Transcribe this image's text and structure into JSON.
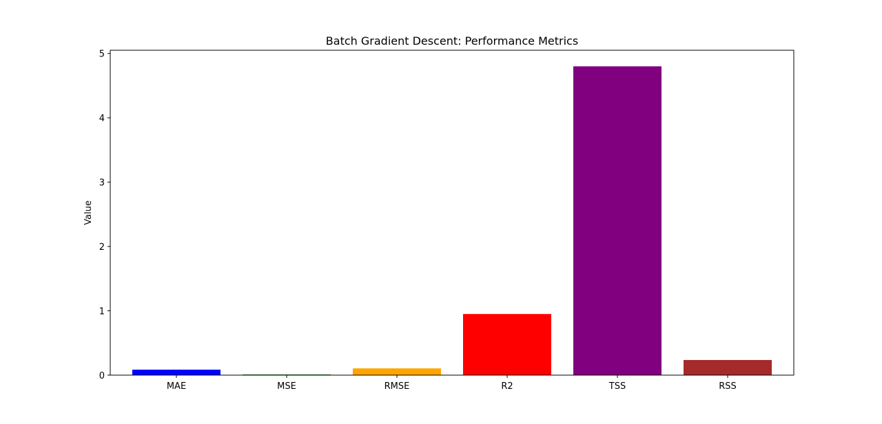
{
  "chart_data": {
    "type": "bar",
    "title": "Batch Gradient Descent: Performance Metrics",
    "xlabel": "",
    "ylabel": "Value",
    "categories": [
      "MAE",
      "MSE",
      "RMSE",
      "R2",
      "TSS",
      "RSS"
    ],
    "values": [
      0.085,
      0.01,
      0.105,
      0.95,
      4.8,
      0.235
    ],
    "colors": [
      "#0000ff",
      "#008000",
      "#ffa500",
      "#ff0000",
      "#800080",
      "#a52a2a"
    ],
    "ylim": [
      0,
      5.05
    ],
    "yticks": [
      0,
      1,
      2,
      3,
      4,
      5
    ],
    "grid": false,
    "legend": "none"
  }
}
